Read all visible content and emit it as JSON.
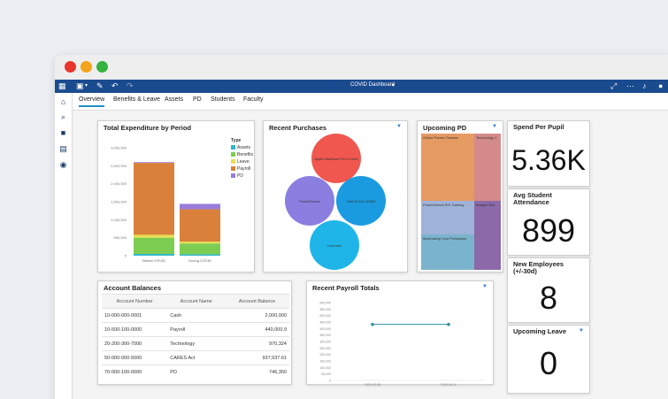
{
  "window": {
    "title": "COVID Dashboard",
    "colors": {
      "close": "#e8352d",
      "minimize": "#f3a41b",
      "maximize": "#35b33f",
      "appbar": "#1b4b8f"
    }
  },
  "tabs": [
    {
      "label": "Overview",
      "active": true
    },
    {
      "label": "Benefits & Leave"
    },
    {
      "label": "Assets"
    },
    {
      "label": "PD"
    },
    {
      "label": "Students"
    },
    {
      "label": "Faculty"
    }
  ],
  "panels": {
    "expenditure": {
      "title": "Total Expenditure by Period"
    },
    "purchases": {
      "title": "Recent Purchases"
    },
    "upcoming_pd": {
      "title": "Upcoming PD"
    },
    "accounts": {
      "title": "Account Balances"
    },
    "payroll": {
      "title": "Recent Payroll Totals"
    }
  },
  "kpis": {
    "spend": {
      "title": "Spend Per Pupil",
      "value": "5.36K"
    },
    "attendance": {
      "title": "Avg Student Attendance",
      "value": "899"
    },
    "new_employees": {
      "title": "New Employees (+/-30d)",
      "value": "8"
    },
    "upcoming_leave": {
      "title": "Upcoming Leave",
      "value": "0"
    }
  },
  "accounts_table": {
    "headers": [
      "Account Number",
      "Account Name",
      "Account Balance"
    ],
    "rows": [
      [
        "10-000-000-0001",
        "Cash",
        "2,000,000"
      ],
      [
        "10-500-100-0000",
        "Payroll",
        "440,000.9"
      ],
      [
        "20-200-300-7000",
        "Technology",
        "970,324"
      ],
      [
        "50-000-000-5000",
        "CARES Act",
        "937,937.61"
      ],
      [
        "70-000-100-0000",
        "PD",
        "746,350"
      ]
    ]
  },
  "chart_data": [
    {
      "type": "bar",
      "title": "Total Expenditure by Period",
      "categories": [
        "Before COVID",
        "During COVID"
      ],
      "legend_title": "Type",
      "yticks": [
        "3,000,000",
        "2,500,000",
        "2,000,000",
        "1,500,000",
        "1,000,000",
        "500,000",
        "0"
      ],
      "ylim": [
        0,
        3000000
      ],
      "series": [
        {
          "name": "Assets",
          "color": "#2fb6c7",
          "values": [
            50000,
            40000
          ]
        },
        {
          "name": "Benefits",
          "color": "#7dcd52",
          "values": [
            450000,
            300000
          ]
        },
        {
          "name": "Leave",
          "color": "#e8e050",
          "values": [
            80000,
            50000
          ]
        },
        {
          "name": "Payroll",
          "color": "#d9813b",
          "values": [
            2000000,
            900000
          ]
        },
        {
          "name": "PD",
          "color": "#9a7ddb",
          "values": [
            20000,
            150000
          ]
        }
      ]
    },
    {
      "type": "scatter",
      "title": "Recent Purchases",
      "bubbles": [
        {
          "label": "Apple MacBook Pro 13-inch",
          "color": "#f0574f"
        },
        {
          "label": "PowerSchool",
          "color": "#8a7fe0"
        },
        {
          "label": "Intel i9 Gen 10590",
          "color": "#1a9be0"
        },
        {
          "label": "Licenses",
          "color": "#1fb5e8"
        }
      ]
    },
    {
      "type": "heatmap",
      "title": "Upcoming PD",
      "cells": [
        {
          "label": "Online Parent Classes",
          "color": "#e59a62"
        },
        {
          "label": "Technology 1",
          "color": "#d48a8a"
        },
        {
          "label": "PowerSchool SIS Training",
          "color": "#9fb3d9"
        },
        {
          "label": "Budget Tool",
          "color": "#8c69a8"
        },
        {
          "label": "Maximizing Your Profession",
          "color": "#7ab3cc"
        }
      ]
    },
    {
      "type": "line",
      "title": "Recent Payroll Totals",
      "x": [
        "2020-03-28",
        "2020-04-11"
      ],
      "values": [
        432000,
        432000
      ],
      "ylim": [
        0,
        600000
      ],
      "yticks": [
        "600,000",
        "550,000",
        "500,000",
        "450,000",
        "400,000",
        "350,000",
        "300,000",
        "250,000",
        "200,000",
        "150,000",
        "100,000",
        "50,000",
        "0"
      ],
      "color": "#2f8fa0"
    }
  ]
}
